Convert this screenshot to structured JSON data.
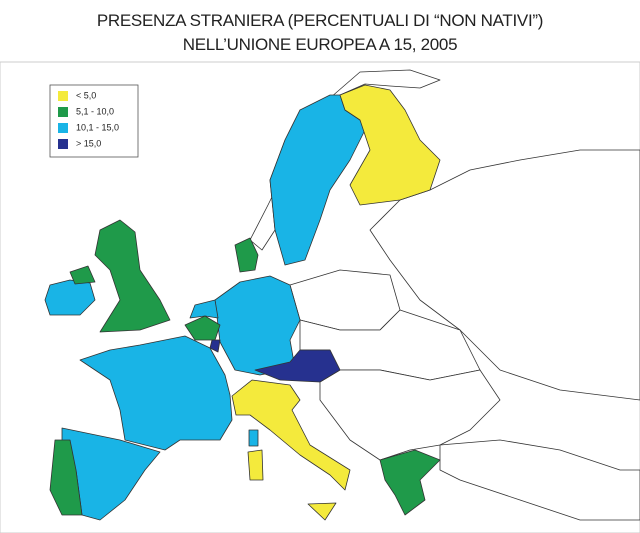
{
  "header": {
    "title": [
      "PRESENZA STRANIERA (PERCENTUALI DI “NON NATIVI”)",
      "NELL’UNIONE EUROPEA A 15, 2005"
    ]
  },
  "legend": {
    "items": [
      {
        "label": "< 5,0",
        "color": "#f4ea3c"
      },
      {
        "label": "5,1 - 10,0",
        "color": "#1f9a4a"
      },
      {
        "label": "10,1 - 15,0",
        "color": "#19b4e6"
      },
      {
        "label": "> 15,0",
        "color": "#26318f"
      }
    ]
  }
}
